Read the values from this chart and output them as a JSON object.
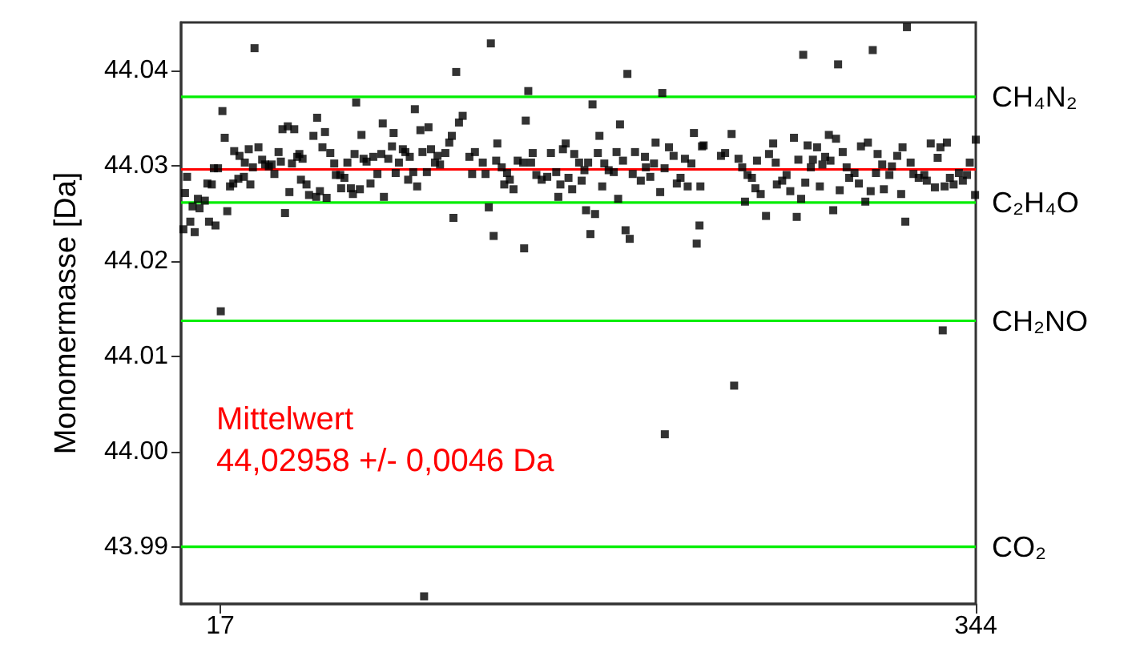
{
  "chart_data": {
    "type": "scatter",
    "ylabel": "Monomermasse [Da]",
    "xlim": [
      0,
      344
    ],
    "xticks": [
      17,
      344
    ],
    "ylim": [
      43.984,
      44.045
    ],
    "yticks": [
      {
        "value": 43.99,
        "label": "43.99"
      },
      {
        "value": 44,
        "label": "44.00"
      },
      {
        "value": 44.01,
        "label": "44.01"
      },
      {
        "value": 44.02,
        "label": "44.02"
      },
      {
        "value": 44.03,
        "label": "44.03"
      },
      {
        "value": 44.04,
        "label": "44.04"
      }
    ],
    "grid": false,
    "marker": "square",
    "ref_lines": [
      {
        "axis": "y",
        "value": 44.0372,
        "label": "CH₄N₂",
        "color": "#00ee00"
      },
      {
        "axis": "y",
        "value": 44.0261,
        "label": "C₂H₄O",
        "color": "#00ee00"
      },
      {
        "axis": "y",
        "value": 44.0137,
        "label": "CH₂NO",
        "color": "#00ee00"
      },
      {
        "axis": "y",
        "value": 43.99,
        "label": "CO₂",
        "color": "#00ee00"
      },
      {
        "axis": "y",
        "value": 44.02958,
        "color": "#ff0000"
      }
    ],
    "annotations": [
      "Mittelwert",
      "44,02958 +/- 0,0046 Da"
    ],
    "series": [
      {
        "color": "#000000",
        "x": [
          1,
          1.7,
          2.6,
          4,
          5,
          5.9,
          7.3,
          8,
          10.3,
          11.4,
          12.1,
          13.3,
          14.2,
          14.9,
          16,
          17.2,
          17.9,
          18.9,
          20,
          21.2,
          22.6,
          23,
          24.8,
          25.3,
          27.2,
          27.6,
          29.3,
          30,
          31.1,
          31.8,
          33.5,
          35.1,
          36.4,
          38,
          39.2,
          40.4,
          42.2,
          43.2,
          43.9,
          45,
          46.2,
          46.9,
          48,
          49,
          50.3,
          51.2,
          51.9,
          52.6,
          54.3,
          55.4,
          57.3,
          58.5,
          58.9,
          60.1,
          61.2,
          62.3,
          63,
          64.6,
          66.3,
          67,
          68.9,
          69.3,
          70.7,
          72,
          73.5,
          74.4,
          75.1,
          75.8,
          77.4,
          78.1,
          79,
          80.3,
          82,
          83.2,
          85,
          86.7,
          87.3,
          87.8,
          89.7,
          91.3,
          92,
          92.9,
          94.3,
          96,
          97.1,
          98.3,
          99,
          100.5,
          101.2,
          102.2,
          103.6,
          104.5,
          105.2,
          106.4,
          107.1,
          108.2,
          109.9,
          111,
          112.1,
          114.4,
          116.1,
          117.2,
          117.9,
          119.1,
          120.3,
          121.9,
          124.8,
          126,
          127.2,
          130.6,
          131.8,
          133.2,
          134.1,
          135.3,
          136.4,
          136.9,
          138.8,
          139.9,
          141.1,
          142.3,
          143.9,
          145.7,
          148.1,
          148.5,
          149.2,
          150.3,
          151.5,
          152.2,
          153.8,
          156.1,
          158.5,
          160.1,
          162.4,
          163.3,
          164.2,
          165.3,
          166.5,
          167.7,
          169.3,
          170.2,
          172.3,
          173.4,
          174.6,
          175.3,
          176.2,
          177.2,
          178.1,
          179.2,
          180.4,
          181.1,
          182.3,
          183.2,
          185.1,
          187.3,
          188.5,
          189.2,
          190,
          191.3,
          192.4,
          193.2,
          194.2,
          195.5,
          196.5,
          199,
          200.8,
          201.2,
          203.1,
          204.7,
          205.4,
          207.4,
          208.3,
          209.3,
          209.4,
          211.2,
          213.2,
          214.6,
          216.2,
          218.1,
          219.3,
          220.9,
          222,
          223.2,
          224.4,
          224.8,
          225.5,
          226.2,
          233.7,
          235.5,
          238.3,
          239.4,
          241.3,
          242.9,
          244.1,
          245.2,
          247.1,
          248.6,
          249.3,
          250.9,
          253.2,
          254.5,
          256.3,
          257.4,
          257.9,
          260.2,
          262.1,
          263.7,
          265.3,
          266.5,
          267.2,
          268.4,
          269.3,
          270.2,
          271.2,
          272.6,
          273.5,
          275.3,
          276.5,
          277.6,
          278.8,
          280.4,
          281.1,
          282.3,
          283.5,
          284.4,
          285.1,
          286.4,
          288.1,
          289.2,
          291.5,
          293.4,
          294.3,
          296.2,
          297.3,
          298.5,
          299.4,
          300.8,
          301.5,
          303.5,
          304.2,
          306.6,
          307.7,
          310,
          311.7,
          312.3,
          313.5,
          314.2,
          315.8,
          317,
          319.3,
          321.7,
          322.8,
          324.5,
          326.3,
          327.5,
          328.7,
          329.7,
          330.5,
          331.5,
          332.8,
          334.4,
          336.7,
          338.4,
          340.2,
          341.4,
          343.7,
          344
        ],
        "values": [
          44.0233,
          44.0271,
          44.0288,
          44.0241,
          44.0257,
          44.023,
          44.0265,
          44.0255,
          44.0263,
          44.0281,
          44.0241,
          44.028,
          44.0297,
          44.0237,
          44.0297,
          44.0147,
          44.0357,
          44.0329,
          44.0252,
          44.0278,
          44.0281,
          44.0315,
          44.0286,
          44.031,
          44.0288,
          44.0303,
          44.0317,
          44.028,
          44.0298,
          44.0423,
          44.0319,
          44.0306,
          44.0301,
          44.0299,
          44.0301,
          44.0291,
          44.0314,
          44.0304,
          44.0338,
          44.025,
          44.0341,
          44.0272,
          44.0302,
          44.0338,
          44.0309,
          44.0312,
          44.0285,
          44.0307,
          44.028,
          44.0269,
          44.0331,
          44.0267,
          44.035,
          44.0273,
          44.0319,
          44.0335,
          44.0266,
          44.0313,
          44.0302,
          44.029,
          44.029,
          44.0276,
          44.0287,
          44.0303,
          44.0276,
          44.027,
          44.0312,
          44.0366,
          44.0275,
          44.0332,
          44.0307,
          44.0304,
          44.0281,
          44.0309,
          44.0291,
          44.0312,
          44.0344,
          44.0267,
          44.0307,
          44.032,
          44.0334,
          44.0292,
          44.0303,
          44.0317,
          44.0314,
          44.0285,
          44.0309,
          44.0293,
          44.0359,
          44.0278,
          44.0337,
          44.0314,
          43.9848,
          44.0293,
          44.034,
          44.0317,
          44.0303,
          44.031,
          44.0301,
          44.0313,
          44.0324,
          44.0331,
          44.0245,
          44.0398,
          44.0345,
          44.0352,
          44.0309,
          44.0291,
          44.0314,
          44.0303,
          44.0291,
          44.0256,
          44.0428,
          44.0226,
          44.0305,
          44.0323,
          44.0298,
          44.028,
          44.0292,
          44.0285,
          44.0275,
          44.0305,
          44.0303,
          44.0213,
          44.0347,
          44.0378,
          44.0303,
          44.0313,
          44.029,
          44.0285,
          44.0288,
          44.0313,
          44.0293,
          44.0267,
          44.028,
          44.0317,
          44.0323,
          44.0287,
          44.0275,
          44.0312,
          44.0303,
          44.0284,
          44.0295,
          44.0253,
          44.0303,
          44.0228,
          44.0364,
          44.0249,
          44.0313,
          44.0331,
          44.0278,
          44.0302,
          44.0295,
          44.0293,
          44.0314,
          44.0265,
          44.0343,
          44.0305,
          44.0232,
          44.0396,
          44.0223,
          44.0291,
          44.0314,
          44.0284,
          44.0309,
          44.0298,
          44.0288,
          44.0302,
          44.0324,
          44.0272,
          44.0376,
          44.0297,
          44.0018,
          44.0319,
          44.031,
          44.0281,
          44.0287,
          44.0307,
          44.0278,
          44.0302,
          44.0334,
          44.0218,
          44.0237,
          44.0278,
          44.032,
          44.0321,
          44.031,
          44.0313,
          44.0333,
          44.0069,
          44.0307,
          44.0298,
          44.0262,
          44.029,
          44.0287,
          44.0276,
          44.0305,
          44.027,
          44.0247,
          44.0312,
          44.0323,
          44.0303,
          44.028,
          44.0284,
          44.029,
          44.0273,
          44.0329,
          44.0246,
          44.0306,
          44.0265,
          44.0416,
          44.0282,
          44.0321,
          44.0298,
          44.0306,
          44.0319,
          44.0278,
          44.0301,
          44.0309,
          44.0332,
          44.0305,
          44.0253,
          44.0328,
          44.0406,
          44.0274,
          44.0314,
          44.0298,
          44.0287,
          44.0292,
          44.0281,
          44.032,
          44.0262,
          44.0324,
          44.0273,
          44.0421,
          44.0292,
          44.0312,
          44.0301,
          44.0275,
          44.029,
          44.0299,
          44.031,
          44.027,
          44.0319,
          44.0241,
          44.0445,
          44.0303,
          44.0291,
          44.0287,
          44.029,
          44.0284,
          44.0323,
          44.0277,
          44.0308,
          44.0319,
          44.0127,
          44.0278,
          44.0324,
          44.0287,
          44.028,
          44.0292,
          44.0284,
          44.029,
          44.0303,
          44.0269,
          44.0327
        ]
      }
    ]
  }
}
